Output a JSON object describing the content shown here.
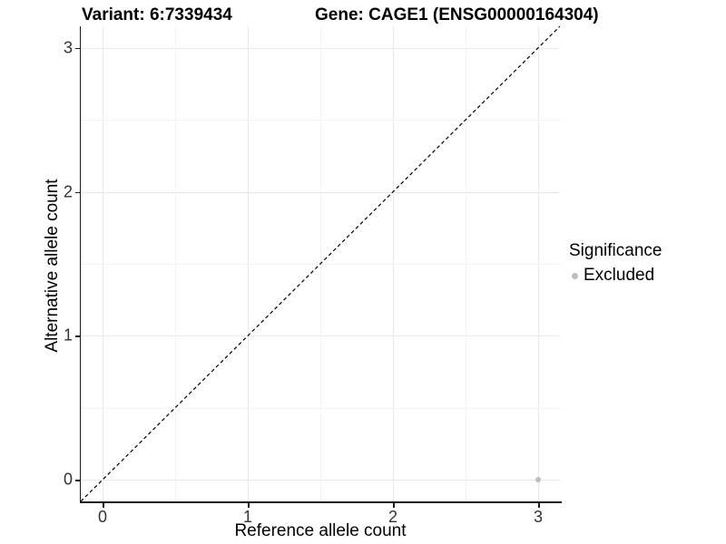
{
  "chart_data": {
    "type": "scatter",
    "title_left": "Variant: 6:7339434",
    "title_right": "Gene: CAGE1 (ENSG00000164304)",
    "xlabel": "Reference allele count",
    "ylabel": "Alternative allele count",
    "xlim": [
      -0.15,
      3.15
    ],
    "ylim": [
      -0.15,
      3.15
    ],
    "x_ticks": [
      0,
      1,
      2,
      3
    ],
    "y_ticks": [
      0,
      1,
      2,
      3
    ],
    "x_minor_ticks": [
      0.5,
      1.5,
      2.5
    ],
    "y_minor_ticks": [
      0.5,
      1.5,
      2.5
    ],
    "grid": "major and minor light-grey gridlines on white background",
    "points": [
      {
        "x": 3,
        "y": 0,
        "series": "Excluded"
      }
    ],
    "reference_line": {
      "kind": "identity y=x",
      "style": "dashed",
      "color": "#000000",
      "x1": -0.15,
      "y1": -0.15,
      "x2": 3.15,
      "y2": 3.15
    },
    "legend": {
      "title": "Significance",
      "position": "right",
      "entries": [
        {
          "label": "Excluded",
          "color": "#bdbdbd"
        }
      ]
    },
    "colors": {
      "point": "#bdbdbd",
      "grid_major": "#e8e8e8",
      "grid_minor": "#f4f4f4",
      "axis_line": "#1a1a1a",
      "tick_label": "#333333",
      "text": "#000000"
    }
  }
}
